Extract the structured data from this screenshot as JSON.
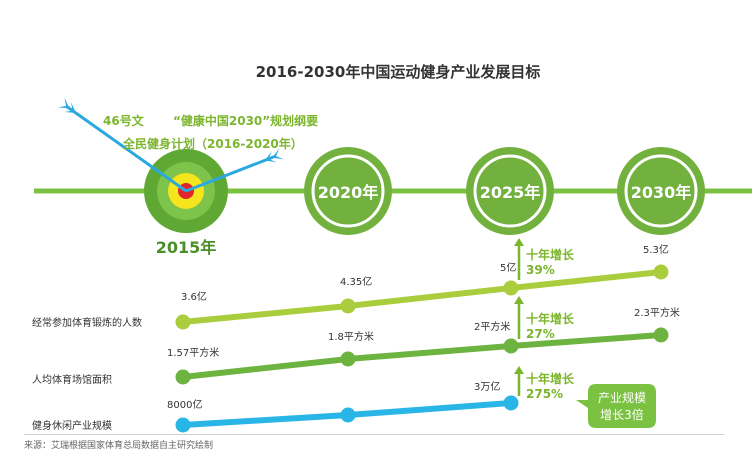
{
  "chart_data": {
    "type": "line",
    "title": "2016-2030年中国运动健身产业发展目标",
    "timeline": {
      "start_label": "2015年",
      "milestones": [
        "2020年",
        "2025年",
        "2030年"
      ],
      "policies": [
        "46号文",
        "“健康中国2030”规划纲要",
        "全民健身计划（2016-2020年）"
      ]
    },
    "series": [
      {
        "name": "经常参加体育锻炼的人数",
        "x": [
          "2015",
          "2020",
          "2025",
          "2030"
        ],
        "values": [
          3.6,
          4.35,
          5,
          5.3
        ],
        "labels": [
          "3.6亿",
          "4.35亿",
          "5亿",
          "5.3亿"
        ],
        "color": "#a9cd3c"
      },
      {
        "name": "人均体育场馆面积",
        "x": [
          "2015",
          "2020",
          "2025",
          "2030"
        ],
        "values": [
          1.57,
          1.8,
          2,
          2.3
        ],
        "labels": [
          "1.57平方米",
          "1.8平方米",
          "2平方米",
          "2.3平方米"
        ],
        "color": "#6db33f"
      },
      {
        "name": "健身休闲产业规模",
        "x": [
          "2015",
          "2020",
          "2025"
        ],
        "values": [
          8000,
          10000,
          30000
        ],
        "labels": [
          "8000亿",
          "",
          "3万亿"
        ],
        "color": "#29b6e6"
      }
    ],
    "annotations": [
      {
        "series": 0,
        "title": "十年增长",
        "value": "39%"
      },
      {
        "series": 1,
        "title": "十年增长",
        "value": "27%"
      },
      {
        "series": 2,
        "title": "十年增长",
        "value": "275%"
      }
    ],
    "callout": [
      "产业规模",
      "增长3倍"
    ],
    "source": "来源：艾瑞根据国家体育总局数据自主研究绘制"
  },
  "colors": {
    "timeline": "#7cc242",
    "circle_fill": "#72b13d",
    "series1": "#a9cd3c",
    "series2": "#6db33f",
    "series3": "#29b6e6",
    "arrow": "#29a9e0",
    "target_yellow": "#f4e51d",
    "target_red": "#e0252b",
    "annotation_green": "#7cb52e"
  }
}
